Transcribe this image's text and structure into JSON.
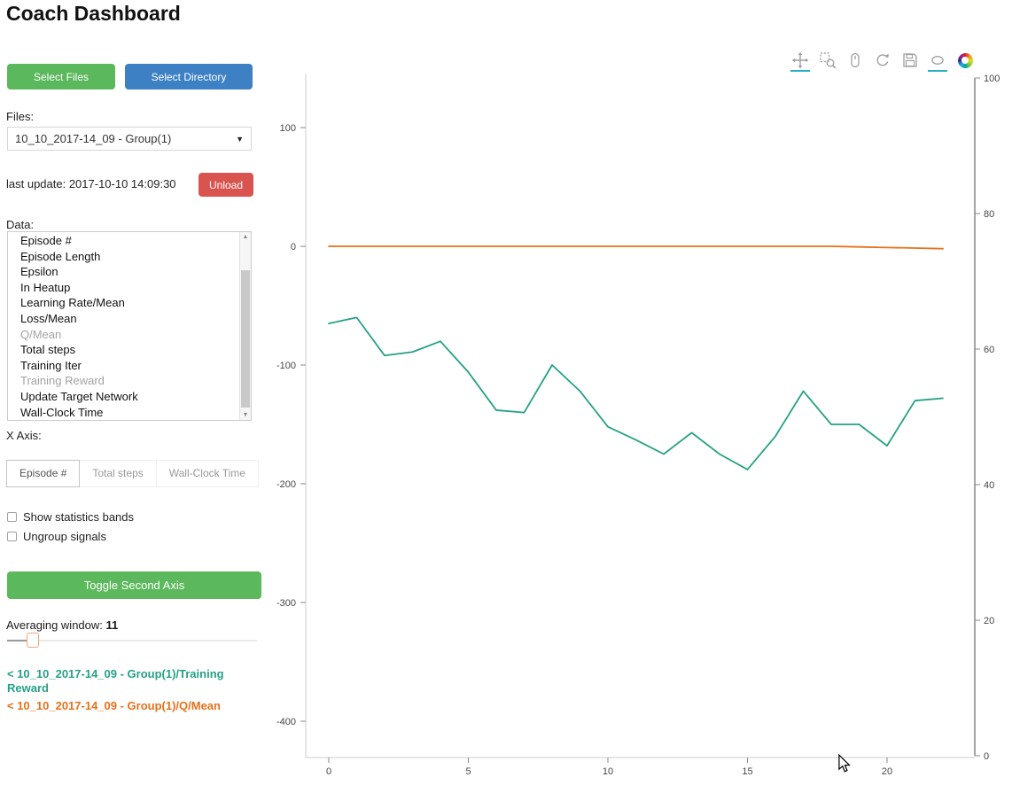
{
  "page": {
    "title": "Coach Dashboard"
  },
  "colors": {
    "green": "#5cb85c",
    "blue": "#3d80c4",
    "red": "#d9534f",
    "teal": "#26a185",
    "orange": "#e8701a",
    "accent": "#2bafc9"
  },
  "buttons": {
    "select_files": "Select Files",
    "select_directory": "Select Directory",
    "unload": "Unload",
    "toggle_second_axis": "Toggle Second Axis"
  },
  "files": {
    "label": "Files:",
    "selected": "10_10_2017-14_09 - Group(1)",
    "last_update": "last update: 2017-10-10 14:09:30"
  },
  "data_list": {
    "label": "Data:",
    "items": [
      {
        "label": "Episode #",
        "dimmed": false
      },
      {
        "label": "Episode Length",
        "dimmed": false
      },
      {
        "label": "Epsilon",
        "dimmed": false
      },
      {
        "label": "In Heatup",
        "dimmed": false
      },
      {
        "label": "Learning Rate/Mean",
        "dimmed": false
      },
      {
        "label": "Loss/Mean",
        "dimmed": false
      },
      {
        "label": "Q/Mean",
        "dimmed": true
      },
      {
        "label": "Total steps",
        "dimmed": false
      },
      {
        "label": "Training Iter",
        "dimmed": false
      },
      {
        "label": "Training Reward",
        "dimmed": true
      },
      {
        "label": "Update Target Network",
        "dimmed": false
      },
      {
        "label": "Wall-Clock Time",
        "dimmed": false
      }
    ]
  },
  "x_axis": {
    "label": "X Axis:",
    "tabs": [
      {
        "label": "Episode #",
        "active": true
      },
      {
        "label": "Total steps",
        "active": false
      },
      {
        "label": "Wall-Clock Time",
        "active": false
      }
    ]
  },
  "options": {
    "show_statistics_bands": "Show statistics bands",
    "ungroup_signals": "Ungroup signals"
  },
  "averaging": {
    "label": "Averaging window:",
    "value": "11"
  },
  "legend": [
    {
      "label": "< 10_10_2017-14_09 - Group(1)/Training Reward",
      "color": "#26a185"
    },
    {
      "label": "< 10_10_2017-14_09 - Group(1)/Q/Mean",
      "color": "#e8701a"
    }
  ],
  "chart_toolbar": {
    "tools": [
      {
        "name": "pan",
        "active": true
      },
      {
        "name": "box-zoom",
        "active": false
      },
      {
        "name": "wheel-zoom",
        "active": false
      },
      {
        "name": "reset",
        "active": false
      },
      {
        "name": "save",
        "active": false
      },
      {
        "name": "hover",
        "active": true
      },
      {
        "name": "bokeh-logo",
        "active": false
      }
    ]
  },
  "chart_data": {
    "type": "line",
    "title": "",
    "xlabel": "",
    "ylabel": "",
    "x": [
      0,
      1,
      2,
      3,
      4,
      5,
      6,
      7,
      8,
      9,
      10,
      11,
      12,
      13,
      14,
      15,
      16,
      17,
      18,
      19,
      20,
      21,
      22
    ],
    "series": [
      {
        "name": "10_10_2017-14_09 - Group(1)/Training Reward",
        "color": "#26a185",
        "axis": "left",
        "values": [
          -65,
          -60,
          -92,
          -89,
          -80,
          -106,
          -138,
          -140,
          -100,
          -122,
          -152,
          -163,
          -175,
          -157,
          -175,
          -188,
          -160,
          -122,
          -150,
          -150,
          -168,
          -130,
          -128
        ]
      },
      {
        "name": "10_10_2017-14_09 - Group(1)/Q/Mean",
        "color": "#e8701a",
        "axis": "left",
        "values": [
          0,
          0,
          0,
          0,
          0,
          0,
          0,
          0,
          0,
          0,
          0,
          0,
          0,
          0,
          0,
          0,
          0,
          0,
          0,
          -0.5,
          -1,
          -1.5,
          -2
        ]
      }
    ],
    "left_axis": {
      "ticks": [
        100,
        0,
        -100,
        -200,
        -300,
        -400
      ],
      "range": [
        -430,
        145
      ]
    },
    "right_axis": {
      "ticks": [
        100,
        80,
        60,
        40,
        20,
        0
      ],
      "range": [
        0,
        100
      ]
    },
    "x_ticks": [
      0,
      5,
      10,
      15,
      20
    ],
    "x_range": [
      -0.8,
      23.2
    ],
    "grid": false,
    "legend_position": "external-left"
  }
}
